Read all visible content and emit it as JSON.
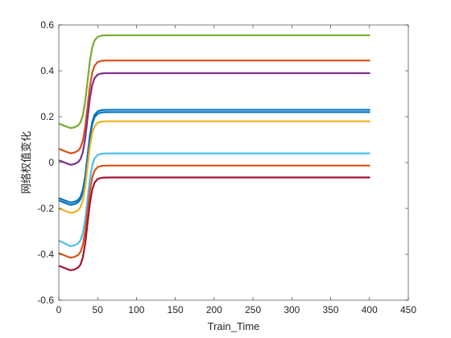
{
  "chart_data": {
    "type": "line",
    "title": "",
    "xlabel": "Train_Time",
    "ylabel": "网络权值变化",
    "xlim": [
      0,
      450
    ],
    "ylim": [
      -0.6,
      0.6
    ],
    "xticks": [
      0,
      50,
      100,
      150,
      200,
      250,
      300,
      350,
      400,
      450
    ],
    "yticks": [
      -0.6,
      -0.4,
      -0.2,
      0,
      0.2,
      0.4,
      0.6
    ],
    "grid": false,
    "legend": "none",
    "x": [
      1,
      5,
      10,
      15,
      20,
      25,
      28,
      31,
      34,
      37,
      40,
      43,
      46,
      50,
      55,
      60,
      70,
      80,
      90,
      100,
      150,
      200,
      250,
      300,
      350,
      400
    ],
    "series": [
      {
        "color": "#77AC30",
        "start": 0.17,
        "min": 0.15,
        "end": 0.555
      },
      {
        "color": "#D95319",
        "start": 0.06,
        "min": 0.04,
        "end": 0.445
      },
      {
        "color": "#7E2F8E",
        "start": 0.01,
        "min": -0.01,
        "end": 0.39
      },
      {
        "color": "#0072BD",
        "start": -0.155,
        "min": -0.175,
        "end": 0.23
      },
      {
        "color": "#0072BD",
        "start": -0.165,
        "min": -0.185,
        "end": 0.22
      },
      {
        "color": "#EDB120",
        "start": -0.2,
        "min": -0.22,
        "end": 0.18
      },
      {
        "color": "#4DBEEE",
        "start": -0.34,
        "min": -0.365,
        "end": 0.04
      },
      {
        "color": "#D95319",
        "start": -0.395,
        "min": -0.415,
        "end": -0.013
      },
      {
        "color": "#A2142F",
        "start": -0.45,
        "min": -0.47,
        "end": -0.065
      }
    ]
  }
}
